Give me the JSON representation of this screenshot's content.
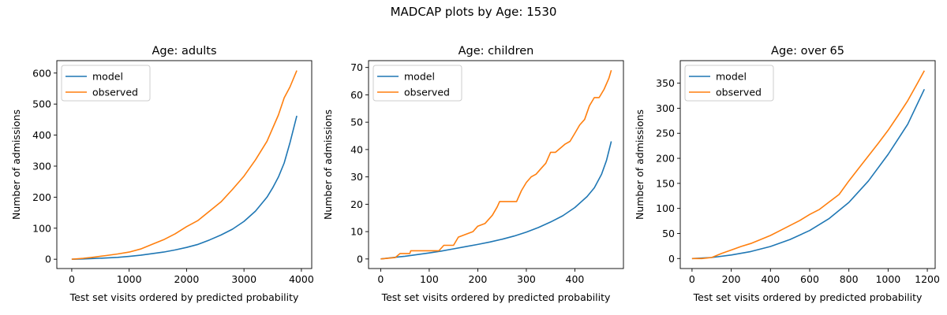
{
  "figure": {
    "title": "MADCAP plots by Age: 1530"
  },
  "colors": {
    "model": "#1f77b4",
    "observed": "#ff7f0e"
  },
  "chart_data": [
    {
      "type": "line",
      "title": "Age: adults",
      "xlabel": "Test set visits ordered by predicted probability",
      "ylabel": "Number of admissions",
      "xlim": [
        -260,
        4180
      ],
      "ylim": [
        -30,
        640
      ],
      "xticks": [
        0,
        1000,
        2000,
        3000,
        4000
      ],
      "yticks": [
        0,
        100,
        200,
        300,
        400,
        500,
        600
      ],
      "legend": {
        "position": "top-left",
        "entries": [
          "model",
          "observed"
        ]
      },
      "grid": false,
      "series": [
        {
          "name": "model",
          "x": [
            0,
            200,
            400,
            600,
            800,
            1000,
            1200,
            1400,
            1600,
            1800,
            2000,
            2200,
            2400,
            2600,
            2800,
            3000,
            3200,
            3400,
            3500,
            3600,
            3700,
            3800,
            3920
          ],
          "y": [
            0,
            1,
            2.5,
            4,
            6,
            9,
            13,
            18,
            23,
            30,
            38,
            48,
            62,
            78,
            97,
            122,
            155,
            200,
            230,
            265,
            310,
            375,
            462
          ]
        },
        {
          "name": "observed",
          "x": [
            0,
            200,
            400,
            600,
            800,
            1000,
            1200,
            1400,
            1600,
            1800,
            2000,
            2200,
            2400,
            2600,
            2800,
            3000,
            3200,
            3400,
            3600,
            3700,
            3800,
            3920
          ],
          "y": [
            0,
            3,
            7,
            12,
            17,
            23,
            33,
            48,
            63,
            82,
            105,
            125,
            155,
            185,
            225,
            268,
            320,
            380,
            465,
            520,
            555,
            608
          ]
        }
      ]
    },
    {
      "type": "line",
      "title": "Age: children",
      "xlabel": "Test set visits ordered by predicted probability",
      "ylabel": "Number of admissions",
      "xlim": [
        -25,
        500
      ],
      "ylim": [
        -3.5,
        72.5
      ],
      "xticks": [
        0,
        100,
        200,
        300,
        400
      ],
      "yticks": [
        0,
        10,
        20,
        30,
        40,
        50,
        60,
        70
      ],
      "legend": {
        "position": "top-left",
        "entries": [
          "model",
          "observed"
        ]
      },
      "grid": false,
      "series": [
        {
          "name": "model",
          "x": [
            0,
            25,
            50,
            75,
            100,
            125,
            150,
            175,
            200,
            225,
            250,
            275,
            300,
            325,
            350,
            375,
            400,
            425,
            440,
            455,
            465,
            475
          ],
          "y": [
            0,
            0.5,
            1,
            1.6,
            2.2,
            2.9,
            3.7,
            4.5,
            5.3,
            6.2,
            7.2,
            8.4,
            9.8,
            11.5,
            13.5,
            15.8,
            18.8,
            22.8,
            26,
            31,
            36,
            43
          ]
        },
        {
          "name": "observed",
          "x": [
            0,
            30,
            40,
            60,
            62,
            120,
            130,
            150,
            160,
            175,
            190,
            200,
            215,
            230,
            240,
            245,
            260,
            280,
            290,
            300,
            310,
            320,
            330,
            340,
            350,
            360,
            380,
            390,
            400,
            410,
            420,
            430,
            440,
            450,
            460,
            470,
            475
          ],
          "y": [
            0,
            0.5,
            2,
            2,
            3,
            3,
            5,
            5,
            8,
            9,
            10,
            12,
            13,
            16,
            19,
            21,
            21,
            21,
            25,
            28,
            30,
            31,
            33,
            35,
            39,
            39,
            42,
            43,
            46,
            49,
            51,
            56,
            59,
            59,
            62,
            66,
            69
          ]
        }
      ]
    },
    {
      "type": "line",
      "title": "Age: over 65",
      "xlabel": "Test set visits ordered by predicted probability",
      "ylabel": "Number of admissions",
      "xlim": [
        -60,
        1240
      ],
      "ylim": [
        -20,
        395
      ],
      "xticks": [
        0,
        200,
        400,
        600,
        800,
        1000,
        1200
      ],
      "yticks": [
        0,
        50,
        100,
        150,
        200,
        250,
        300,
        350
      ],
      "legend": {
        "position": "top-left",
        "entries": [
          "model",
          "observed"
        ]
      },
      "grid": false,
      "series": [
        {
          "name": "model",
          "x": [
            0,
            100,
            200,
            300,
            400,
            500,
            600,
            700,
            800,
            900,
            1000,
            1100,
            1185
          ],
          "y": [
            0,
            2,
            7,
            14,
            24,
            38,
            56,
            80,
            112,
            155,
            208,
            268,
            338
          ]
        },
        {
          "name": "observed",
          "x": [
            0,
            50,
            100,
            150,
            200,
            250,
            300,
            350,
            400,
            450,
            500,
            550,
            600,
            650,
            700,
            750,
            800,
            850,
            900,
            950,
            1000,
            1050,
            1100,
            1150,
            1185
          ],
          "y": [
            0,
            0,
            2,
            10,
            17,
            24,
            30,
            38,
            46,
            56,
            66,
            76,
            88,
            98,
            113,
            128,
            155,
            180,
            205,
            230,
            256,
            285,
            315,
            350,
            375
          ]
        }
      ]
    }
  ]
}
